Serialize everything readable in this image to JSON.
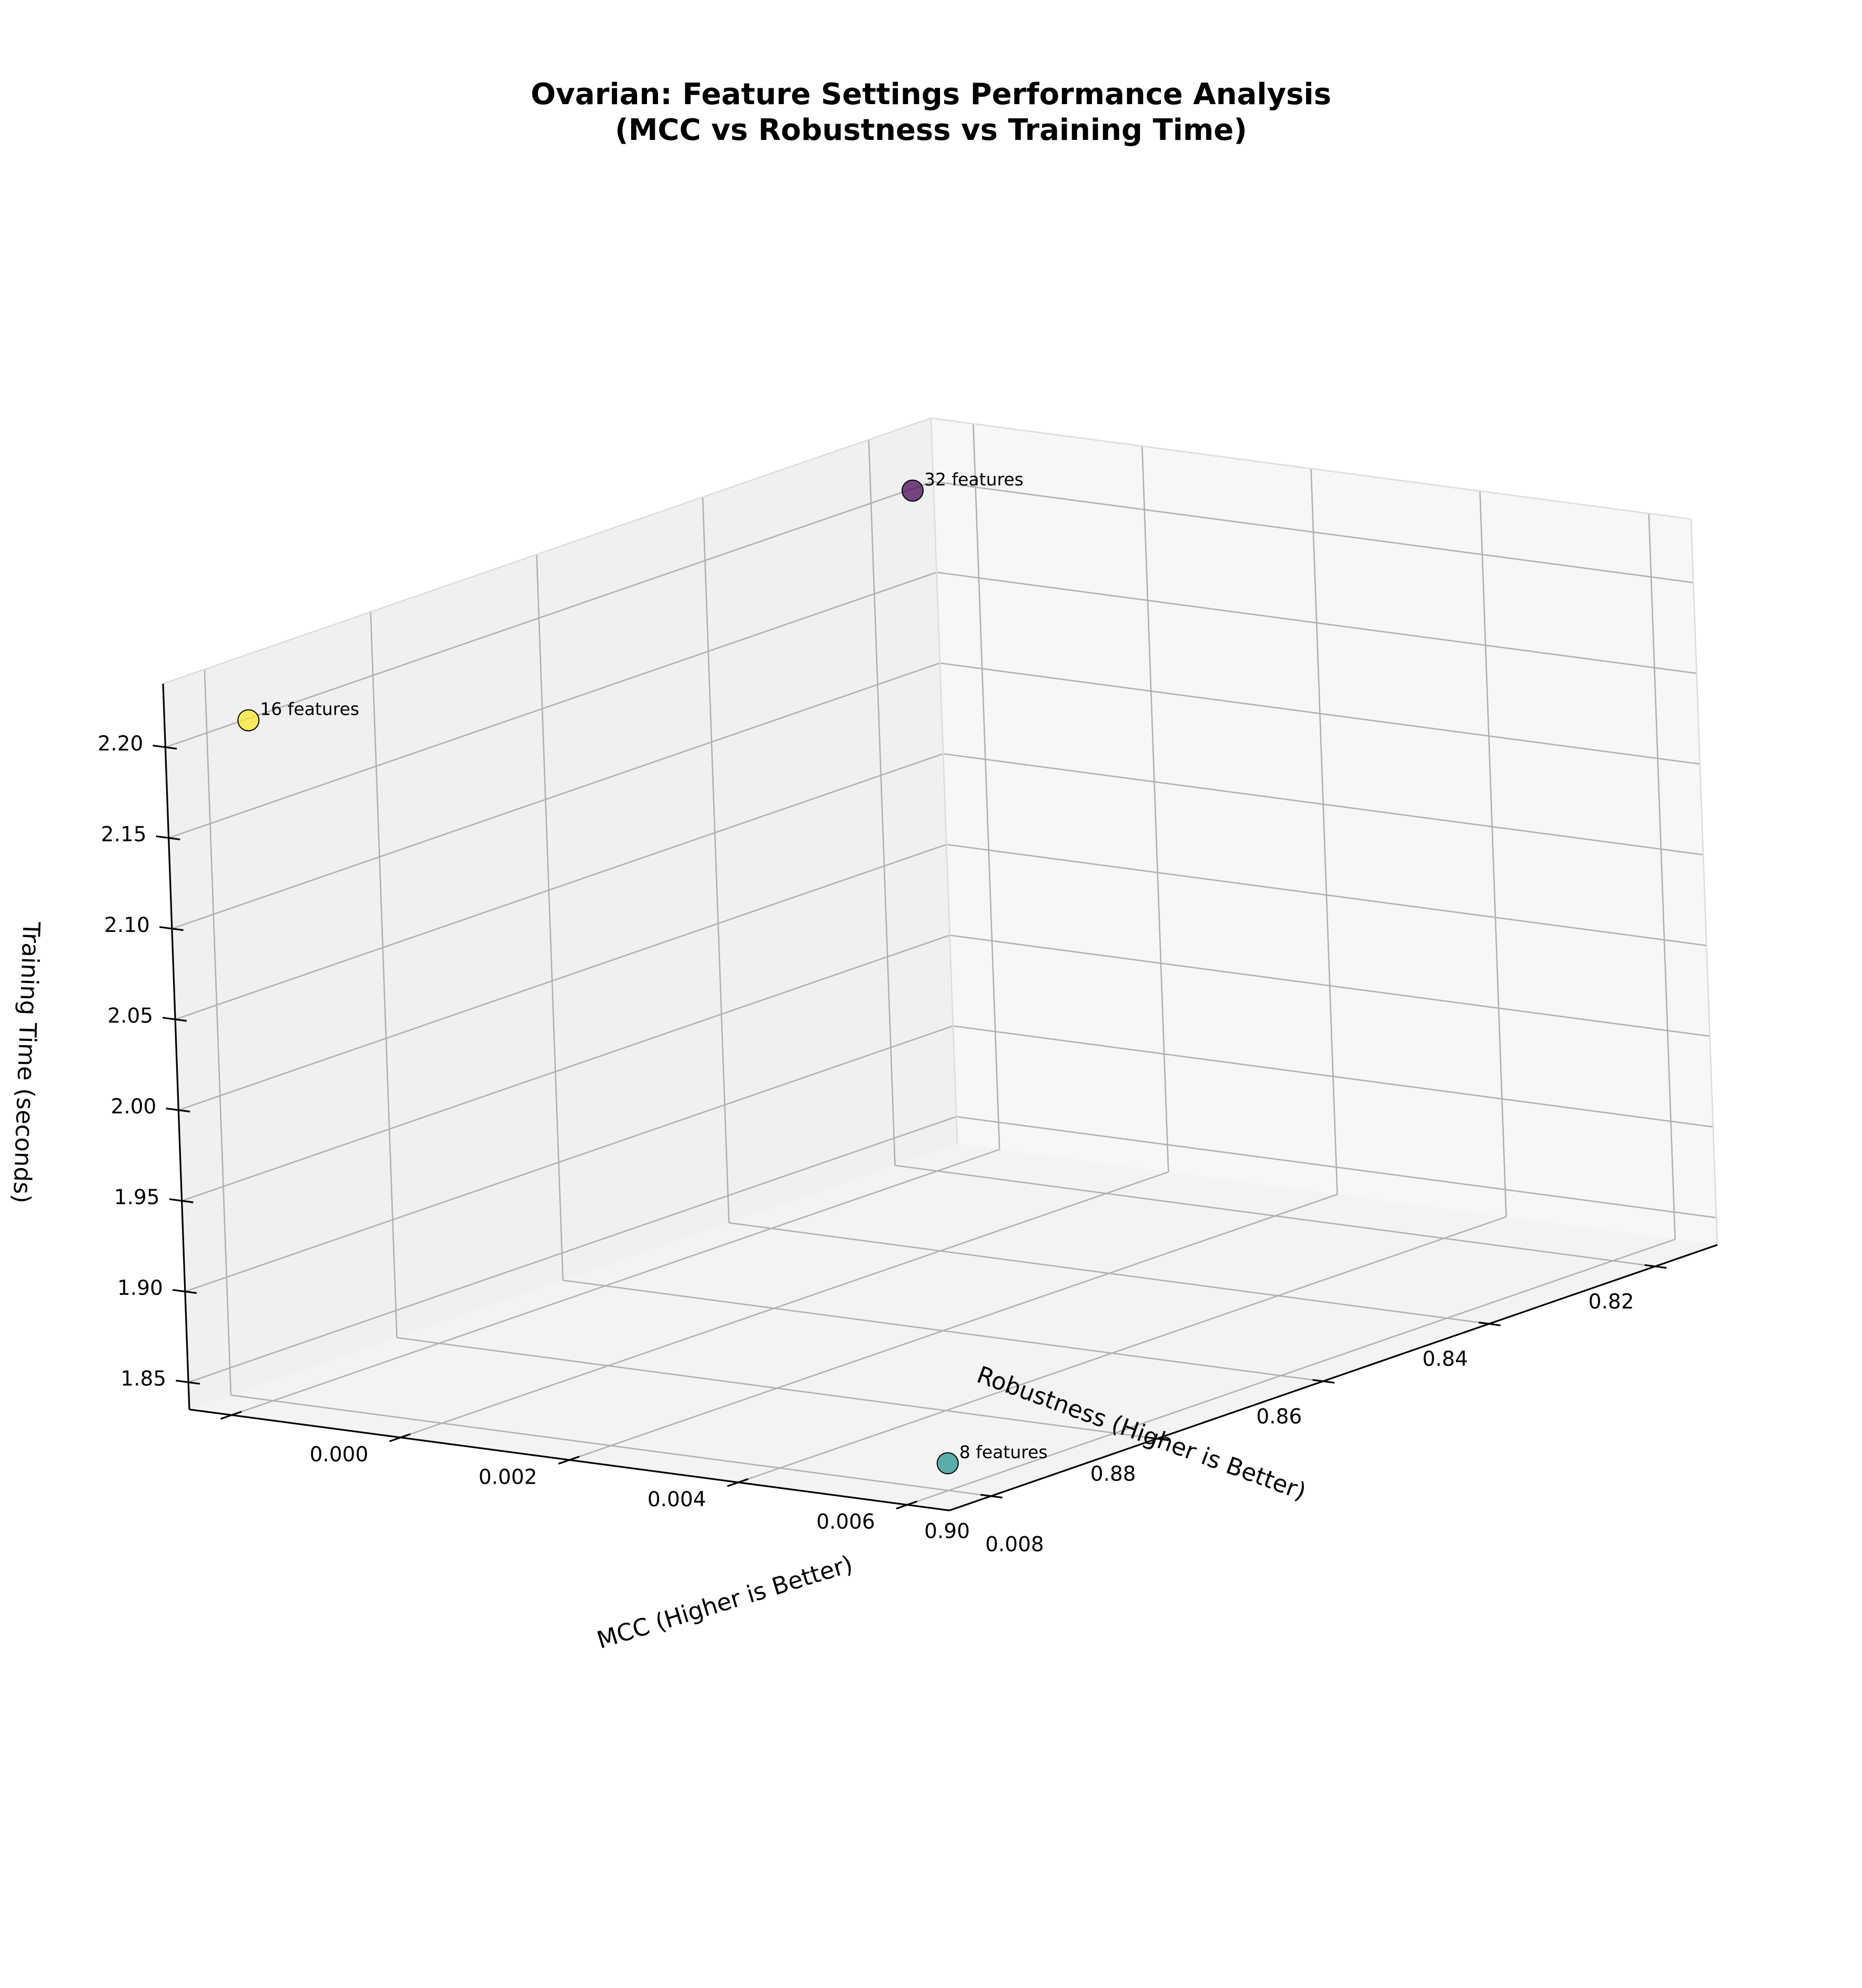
{
  "chart_data": {
    "type": "scatter",
    "projection": "3d",
    "title_lines": [
      "Ovarian: Feature Settings Performance Analysis",
      "(MCC vs Robustness vs Training Time)"
    ],
    "xlabel": "MCC (Higher is Better)",
    "ylabel": "Robustness (Higher is Better)",
    "zlabel": "Training Time (seconds)",
    "xlim": [
      -0.0005,
      0.0085
    ],
    "ylim": [
      0.8125,
      0.905
    ],
    "zlim": [
      1.835,
      2.235
    ],
    "x_ticks": [
      "0.000",
      "0.002",
      "0.004",
      "0.006",
      "0.008"
    ],
    "y_ticks": [
      "0.82",
      "0.84",
      "0.86",
      "0.88",
      "0.90"
    ],
    "z_ticks": [
      "1.85",
      "1.90",
      "1.95",
      "2.00",
      "2.05",
      "2.10",
      "2.15",
      "2.20"
    ],
    "grid": true,
    "colormap": "viridis",
    "colors": {
      "pane_left": "#f0f0f0",
      "pane_right": "#f7f7f7",
      "pane_floor": "#f3f3f3",
      "grid": "#b0b0b0",
      "edge": "#000000"
    },
    "points": [
      {
        "label": "32 features",
        "mcc": 0.0,
        "robustness": 0.82,
        "time": 2.21,
        "color": "#440154"
      },
      {
        "label": "16 features",
        "mcc": 0.0,
        "robustness": 0.9,
        "time": 2.21,
        "color": "#fde725"
      },
      {
        "label": "8 features",
        "mcc": 0.008,
        "robustness": 0.9,
        "time": 1.85,
        "color": "#21918c"
      }
    ]
  }
}
